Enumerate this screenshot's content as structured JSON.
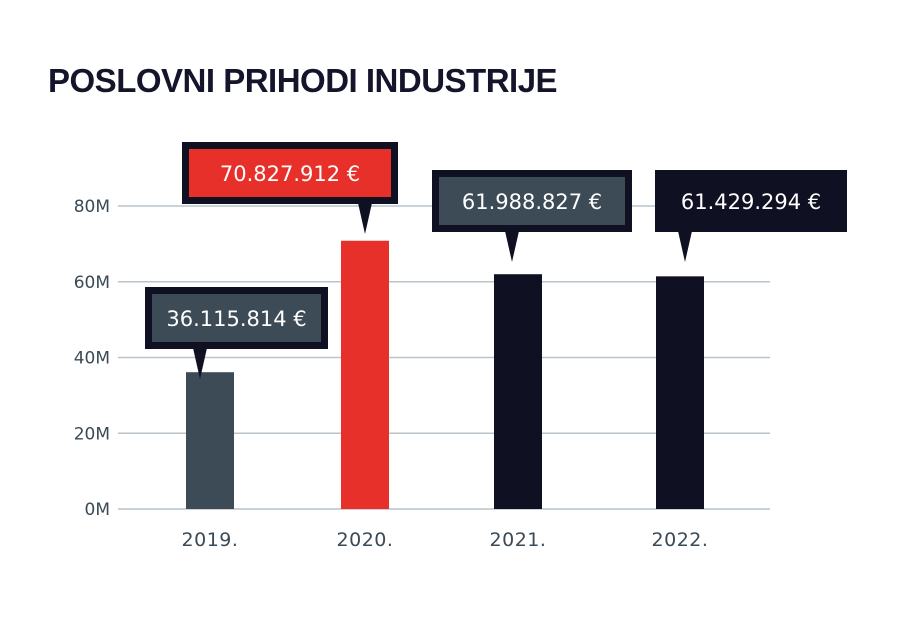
{
  "chart_data": {
    "type": "bar",
    "title": "POSLOVNI PRIHODI INDUSTRIJE",
    "xlabel": "",
    "ylabel": "",
    "categories": [
      "2019.",
      "2020.",
      "2021.",
      "2022."
    ],
    "values": [
      36115814,
      70827912,
      61988827,
      61429294
    ],
    "value_labels": [
      "36.115.814 €",
      "70.827.912 €",
      "61.988.827 €",
      "61.429.294 €"
    ],
    "yticks": [
      0,
      20000000,
      40000000,
      60000000,
      80000000
    ],
    "ytick_labels": [
      "0M",
      "20M",
      "40M",
      "60M",
      "80M"
    ],
    "ylim": [
      0,
      80000000
    ],
    "grid": true,
    "legend": "none",
    "bar_colors": [
      "#3d4b56",
      "#e8302a",
      "#0f1022",
      "#0f1022"
    ],
    "callout_colors": [
      "#3d4b56",
      "#e8302a",
      "#3d4b56",
      "#0f1022"
    ],
    "callout_border": "#0f1022",
    "grid_color": "#b9c3cb"
  }
}
